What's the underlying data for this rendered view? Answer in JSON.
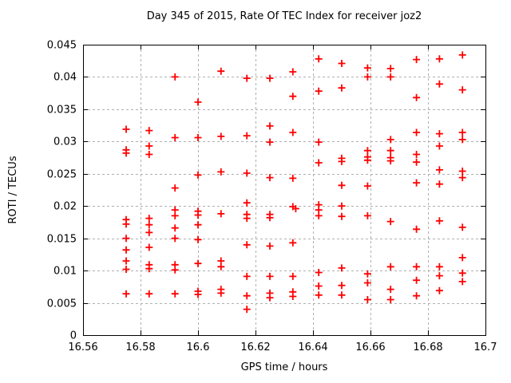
{
  "chart_data": {
    "type": "scatter",
    "title": "Day 345 of 2015, Rate Of TEC Index for receiver joz2",
    "xlabel": "GPS time / hours",
    "ylabel": "ROTI / TECUs",
    "xlim": [
      16.56,
      16.7
    ],
    "ylim": [
      0,
      0.045
    ],
    "grid": true,
    "legend": "none",
    "x_ticks": {
      "values": [
        16.56,
        16.58,
        16.6,
        16.62,
        16.64,
        16.66,
        16.68,
        16.7
      ],
      "labels": [
        "16.56",
        "16.58",
        "16.6",
        "16.62",
        "16.64",
        "16.66",
        "16.68",
        "16.7"
      ]
    },
    "y_ticks": {
      "values": [
        0,
        0.005,
        0.01,
        0.015,
        0.02,
        0.025,
        0.03,
        0.035,
        0.04,
        0.045
      ],
      "labels": [
        "0",
        "0.005",
        "0.01",
        "0.015",
        "0.02",
        "0.025",
        "0.03",
        "0.035",
        "0.04",
        "0.045"
      ]
    },
    "marker": {
      "shape": "plus",
      "color": "#ff0000",
      "size": 9
    },
    "grid_color": "#b0b0b0",
    "axis_color": "#000000",
    "series": [
      {
        "name": "ROTI",
        "points": [
          [
            16.575,
            0.0319
          ],
          [
            16.575,
            0.0287
          ],
          [
            16.575,
            0.0282
          ],
          [
            16.575,
            0.0179
          ],
          [
            16.575,
            0.0172
          ],
          [
            16.575,
            0.015
          ],
          [
            16.575,
            0.0132
          ],
          [
            16.575,
            0.0115
          ],
          [
            16.575,
            0.0102
          ],
          [
            16.575,
            0.0064
          ],
          [
            16.583,
            0.0317
          ],
          [
            16.583,
            0.0293
          ],
          [
            16.583,
            0.028
          ],
          [
            16.583,
            0.0181
          ],
          [
            16.583,
            0.0171
          ],
          [
            16.583,
            0.0159
          ],
          [
            16.583,
            0.0136
          ],
          [
            16.583,
            0.0109
          ],
          [
            16.583,
            0.0103
          ],
          [
            16.583,
            0.0064
          ],
          [
            16.592,
            0.04
          ],
          [
            16.592,
            0.0306
          ],
          [
            16.592,
            0.0228
          ],
          [
            16.592,
            0.0194
          ],
          [
            16.592,
            0.0185
          ],
          [
            16.592,
            0.0166
          ],
          [
            16.592,
            0.015
          ],
          [
            16.592,
            0.0109
          ],
          [
            16.592,
            0.0101
          ],
          [
            16.592,
            0.0064
          ],
          [
            16.6,
            0.0361
          ],
          [
            16.6,
            0.0306
          ],
          [
            16.6,
            0.0248
          ],
          [
            16.6,
            0.0192
          ],
          [
            16.6,
            0.0186
          ],
          [
            16.6,
            0.0171
          ],
          [
            16.6,
            0.0148
          ],
          [
            16.6,
            0.0111
          ],
          [
            16.6,
            0.0068
          ],
          [
            16.6,
            0.0063
          ],
          [
            16.608,
            0.0409
          ],
          [
            16.608,
            0.0308
          ],
          [
            16.608,
            0.0253
          ],
          [
            16.608,
            0.0188
          ],
          [
            16.608,
            0.0115
          ],
          [
            16.608,
            0.0106
          ],
          [
            16.608,
            0.0071
          ],
          [
            16.608,
            0.0065
          ],
          [
            16.617,
            0.0398
          ],
          [
            16.617,
            0.0309
          ],
          [
            16.617,
            0.0251
          ],
          [
            16.617,
            0.0205
          ],
          [
            16.617,
            0.0187
          ],
          [
            16.617,
            0.0181
          ],
          [
            16.617,
            0.014
          ],
          [
            16.617,
            0.0091
          ],
          [
            16.617,
            0.0061
          ],
          [
            16.617,
            0.004
          ],
          [
            16.625,
            0.0398
          ],
          [
            16.625,
            0.0324
          ],
          [
            16.625,
            0.0299
          ],
          [
            16.625,
            0.0244
          ],
          [
            16.625,
            0.0187
          ],
          [
            16.625,
            0.0182
          ],
          [
            16.625,
            0.0138
          ],
          [
            16.625,
            0.0091
          ],
          [
            16.625,
            0.0065
          ],
          [
            16.625,
            0.0058
          ],
          [
            16.633,
            0.0408
          ],
          [
            16.633,
            0.037
          ],
          [
            16.633,
            0.0314
          ],
          [
            16.633,
            0.0243
          ],
          [
            16.633,
            0.0199
          ],
          [
            16.634,
            0.0196
          ],
          [
            16.633,
            0.0143
          ],
          [
            16.633,
            0.0091
          ],
          [
            16.633,
            0.0067
          ],
          [
            16.633,
            0.006
          ],
          [
            16.642,
            0.0428
          ],
          [
            16.642,
            0.0378
          ],
          [
            16.642,
            0.0299
          ],
          [
            16.642,
            0.0267
          ],
          [
            16.642,
            0.0202
          ],
          [
            16.642,
            0.0194
          ],
          [
            16.642,
            0.0185
          ],
          [
            16.642,
            0.0097
          ],
          [
            16.642,
            0.0076
          ],
          [
            16.642,
            0.0062
          ],
          [
            16.65,
            0.0421
          ],
          [
            16.65,
            0.0383
          ],
          [
            16.65,
            0.0274
          ],
          [
            16.65,
            0.0269
          ],
          [
            16.65,
            0.0232
          ],
          [
            16.65,
            0.02
          ],
          [
            16.65,
            0.0184
          ],
          [
            16.65,
            0.0104
          ],
          [
            16.65,
            0.0077
          ],
          [
            16.65,
            0.0062
          ],
          [
            16.659,
            0.0414
          ],
          [
            16.659,
            0.04
          ],
          [
            16.659,
            0.0286
          ],
          [
            16.659,
            0.0276
          ],
          [
            16.659,
            0.0271
          ],
          [
            16.659,
            0.0231
          ],
          [
            16.659,
            0.0185
          ],
          [
            16.659,
            0.0095
          ],
          [
            16.659,
            0.0081
          ],
          [
            16.659,
            0.0055
          ],
          [
            16.667,
            0.0413
          ],
          [
            16.667,
            0.04
          ],
          [
            16.667,
            0.0303
          ],
          [
            16.667,
            0.0286
          ],
          [
            16.667,
            0.0275
          ],
          [
            16.667,
            0.027
          ],
          [
            16.667,
            0.0176
          ],
          [
            16.667,
            0.0106
          ],
          [
            16.667,
            0.0071
          ],
          [
            16.667,
            0.0055
          ],
          [
            16.676,
            0.0427
          ],
          [
            16.676,
            0.0368
          ],
          [
            16.676,
            0.0314
          ],
          [
            16.676,
            0.028
          ],
          [
            16.676,
            0.0268
          ],
          [
            16.676,
            0.0236
          ],
          [
            16.676,
            0.0164
          ],
          [
            16.676,
            0.0106
          ],
          [
            16.676,
            0.0085
          ],
          [
            16.676,
            0.0061
          ],
          [
            16.684,
            0.0428
          ],
          [
            16.684,
            0.0389
          ],
          [
            16.684,
            0.0312
          ],
          [
            16.684,
            0.0293
          ],
          [
            16.684,
            0.0256
          ],
          [
            16.684,
            0.0234
          ],
          [
            16.684,
            0.0177
          ],
          [
            16.684,
            0.0106
          ],
          [
            16.684,
            0.0092
          ],
          [
            16.684,
            0.0069
          ],
          [
            16.692,
            0.0434
          ],
          [
            16.692,
            0.038
          ],
          [
            16.692,
            0.0314
          ],
          [
            16.692,
            0.0303
          ],
          [
            16.692,
            0.0254
          ],
          [
            16.692,
            0.0244
          ],
          [
            16.692,
            0.0167
          ],
          [
            16.692,
            0.012
          ],
          [
            16.692,
            0.0096
          ],
          [
            16.692,
            0.0083
          ]
        ]
      }
    ]
  }
}
